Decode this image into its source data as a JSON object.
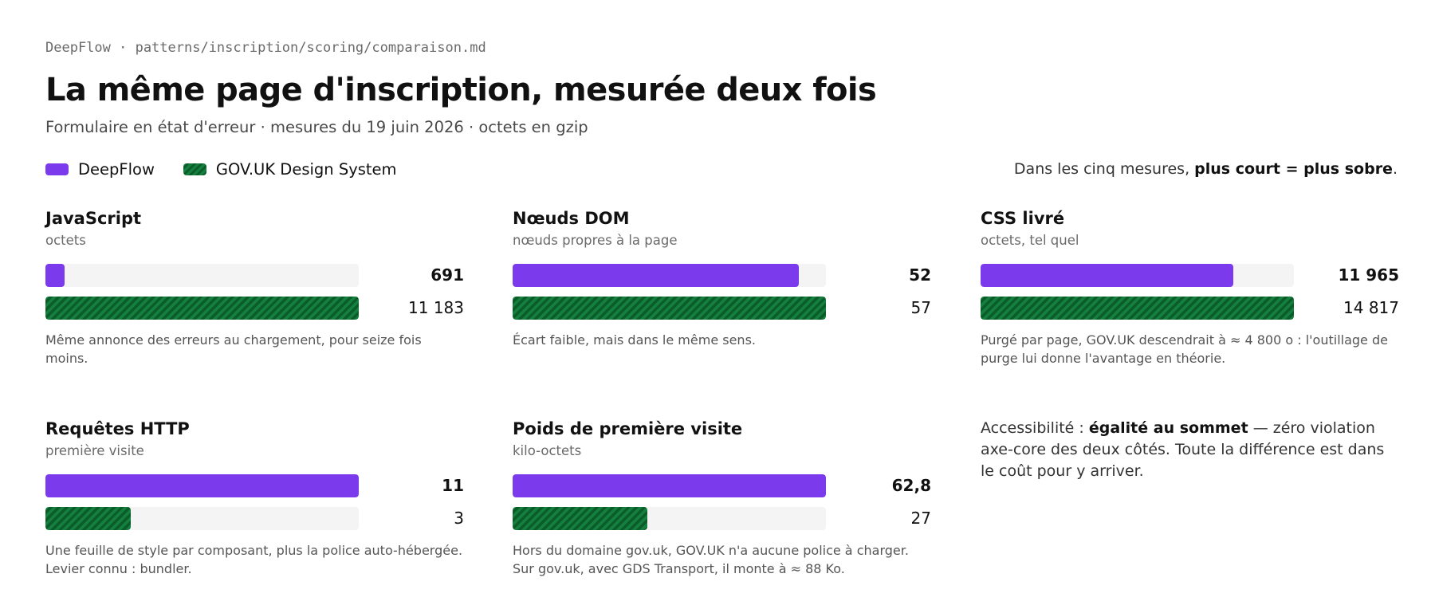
{
  "header": {
    "breadcrumb": "DeepFlow · patterns/inscription/scoring/comparaison.md",
    "title": "La même page d'inscription, mesurée deux fois",
    "subtitle": "Formulaire en état d'erreur · mesures du 19 juin 2026 · octets en gzip"
  },
  "legend": {
    "series_a": "DeepFlow",
    "series_b": "GOV.UK Design System",
    "note_prefix": "Dans les cinq mesures, ",
    "note_bold": "plus court = plus sobre",
    "note_suffix": "."
  },
  "colors": {
    "deepflow": "#7c3aed",
    "govuk": "#15803d"
  },
  "chart_data": [
    {
      "type": "bar",
      "title": "JavaScript",
      "ylabel": "octets",
      "categories": [
        "DeepFlow",
        "GOV.UK Design System"
      ],
      "values": [
        691,
        11183
      ],
      "value_labels": [
        "691",
        "11 183"
      ],
      "note": "Même annonce des erreurs au chargement, pour seize fois moins."
    },
    {
      "type": "bar",
      "title": "Nœuds DOM",
      "ylabel": "nœuds propres à la page",
      "categories": [
        "DeepFlow",
        "GOV.UK Design System"
      ],
      "values": [
        52,
        57
      ],
      "value_labels": [
        "52",
        "57"
      ],
      "note": "Écart faible, mais dans le même sens."
    },
    {
      "type": "bar",
      "title": "CSS livré",
      "ylabel": "octets, tel quel",
      "categories": [
        "DeepFlow",
        "GOV.UK Design System"
      ],
      "values": [
        11965,
        14817
      ],
      "value_labels": [
        "11 965",
        "14 817"
      ],
      "note": "Purgé par page, GOV.UK descendrait à ≈ 4 800 o : l'outillage de purge lui donne l'avantage en théorie."
    },
    {
      "type": "bar",
      "title": "Requêtes HTTP",
      "ylabel": "première visite",
      "categories": [
        "DeepFlow",
        "GOV.UK Design System"
      ],
      "values": [
        11,
        3
      ],
      "value_labels": [
        "11",
        "3"
      ],
      "note": "Une feuille de style par composant, plus la police auto-hébergée. Levier connu : bundler."
    },
    {
      "type": "bar",
      "title": "Poids de première visite",
      "ylabel": "kilo-octets",
      "categories": [
        "DeepFlow",
        "GOV.UK Design System"
      ],
      "values": [
        62.8,
        27
      ],
      "value_labels": [
        "62,8",
        "27"
      ],
      "note": "Hors du domaine gov.uk, GOV.UK n'a aucune police à charger. Sur gov.uk, avec GDS Transport, il monte à ≈ 88 Ko."
    }
  ],
  "accessibility": {
    "prefix": "Accessibilité : ",
    "bold": "égalité au sommet",
    "suffix": " — zéro violation axe-core des deux côtés. Toute la différence est dans le coût pour y arriver."
  }
}
